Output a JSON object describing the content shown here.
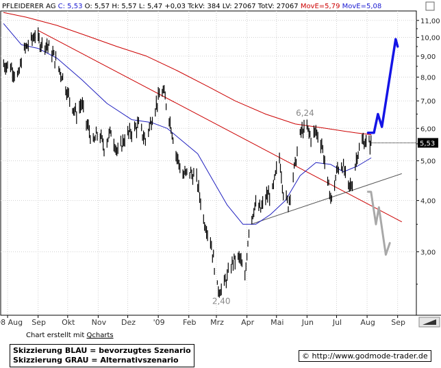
{
  "header": {
    "name": "PFLEIDERER AG",
    "close_label": "C: 5,53",
    "rest": "O: 5,57 H: 5,57 L: 5,47 +0,03 TckV: 384 LV: 27067 TotV: 27067",
    "ma1_label": "MovE=5,79",
    "ma2_label": "MovE=5,08"
  },
  "chart_data": {
    "type": "candlestick",
    "title": "PFLEIDERER AG",
    "y_scale": "log",
    "ylim": [
      2.1,
      11.6
    ],
    "x_ticks": [
      "'08 Aug",
      "Sep",
      "Okt",
      "Nov",
      "Dez",
      "'09",
      "Feb",
      "Mrz",
      "Apr",
      "Mai",
      "Jun",
      "Jul",
      "Aug",
      "Sep"
    ],
    "y_ticks": [
      "11,00",
      "10,00",
      "9,00",
      "8,00",
      "7,00",
      "6,00",
      "5,00",
      "4,00",
      "3,00"
    ],
    "current_price_label": "5,53",
    "annotations": [
      {
        "text": "6,24",
        "date": "2009-05-30",
        "value": 6.24
      },
      {
        "text": "2,40",
        "date": "2009-03-06",
        "value": 2.4
      }
    ],
    "price_path": [
      [
        "2008-07-28",
        8.6
      ],
      [
        "2008-08-04",
        8.5
      ],
      [
        "2008-08-08",
        8.2
      ],
      [
        "2008-08-12",
        8.0
      ],
      [
        "2008-08-15",
        8.8
      ],
      [
        "2008-08-19",
        9.4
      ],
      [
        "2008-08-25",
        9.8
      ],
      [
        "2008-08-29",
        10.2
      ],
      [
        "2008-09-03",
        9.7
      ],
      [
        "2008-09-10",
        9.6
      ],
      [
        "2008-09-16",
        9.1
      ],
      [
        "2008-09-22",
        8.4
      ],
      [
        "2008-09-26",
        8.0
      ],
      [
        "2008-10-01",
        7.3
      ],
      [
        "2008-10-06",
        6.8
      ],
      [
        "2008-10-10",
        6.5
      ],
      [
        "2008-10-15",
        6.9
      ],
      [
        "2008-10-20",
        6.2
      ],
      [
        "2008-10-27",
        5.5
      ],
      [
        "2008-11-01",
        5.9
      ],
      [
        "2008-11-07",
        5.4
      ],
      [
        "2008-11-14",
        5.9
      ],
      [
        "2008-11-21",
        5.2
      ],
      [
        "2008-11-28",
        5.7
      ],
      [
        "2008-12-05",
        5.9
      ],
      [
        "2008-12-12",
        6.1
      ],
      [
        "2008-12-19",
        5.6
      ],
      [
        "2008-12-26",
        6.4
      ],
      [
        "2009-01-02",
        7.2
      ],
      [
        "2009-01-06",
        7.4
      ],
      [
        "2009-01-12",
        6.4
      ],
      [
        "2009-01-19",
        5.2
      ],
      [
        "2009-01-26",
        4.6
      ],
      [
        "2009-02-02",
        4.7
      ],
      [
        "2009-02-09",
        4.5
      ],
      [
        "2009-02-16",
        3.6
      ],
      [
        "2009-02-23",
        3.2
      ],
      [
        "2009-03-02",
        2.45
      ],
      [
        "2009-03-06",
        2.42
      ],
      [
        "2009-03-12",
        2.6
      ],
      [
        "2009-03-18",
        2.85
      ],
      [
        "2009-03-25",
        2.9
      ],
      [
        "2009-03-30",
        2.55
      ],
      [
        "2009-04-03",
        3.4
      ],
      [
        "2009-04-09",
        3.9
      ],
      [
        "2009-04-15",
        3.8
      ],
      [
        "2009-04-21",
        4.1
      ],
      [
        "2009-04-27",
        4.2
      ],
      [
        "2009-05-04",
        5.1
      ],
      [
        "2009-05-08",
        4.2
      ],
      [
        "2009-05-13",
        3.9
      ],
      [
        "2009-05-20",
        4.9
      ],
      [
        "2009-05-26",
        5.9
      ],
      [
        "2009-06-01",
        6.0
      ],
      [
        "2009-06-05",
        5.7
      ],
      [
        "2009-06-10",
        5.9
      ],
      [
        "2009-06-16",
        5.5
      ],
      [
        "2009-06-22",
        4.4
      ],
      [
        "2009-06-26",
        4.0
      ],
      [
        "2009-07-02",
        4.8
      ],
      [
        "2009-07-07",
        4.9
      ],
      [
        "2009-07-13",
        4.3
      ],
      [
        "2009-07-17",
        4.4
      ],
      [
        "2009-07-22",
        5.2
      ],
      [
        "2009-07-28",
        5.6
      ],
      [
        "2009-08-03",
        5.5
      ],
      [
        "2009-08-05",
        5.53
      ]
    ],
    "series": [
      {
        "name": "MovE=5,79",
        "color": "#cc0000",
        "points": [
          [
            "2008-07-28",
            11.5
          ],
          [
            "2008-08-20",
            11.2
          ],
          [
            "2008-09-20",
            10.7
          ],
          [
            "2008-10-20",
            10.1
          ],
          [
            "2008-11-20",
            9.5
          ],
          [
            "2008-12-20",
            9.0
          ],
          [
            "2009-01-20",
            8.3
          ],
          [
            "2009-02-20",
            7.6
          ],
          [
            "2009-03-20",
            7.0
          ],
          [
            "2009-04-20",
            6.5
          ],
          [
            "2009-05-20",
            6.15
          ],
          [
            "2009-06-20",
            6.0
          ],
          [
            "2009-07-20",
            5.85
          ],
          [
            "2009-08-05",
            5.79
          ]
        ]
      },
      {
        "name": "MovE=5,08",
        "color": "#1f1fbf",
        "points": [
          [
            "2008-07-28",
            10.8
          ],
          [
            "2008-08-15",
            9.6
          ],
          [
            "2008-09-01",
            9.4
          ],
          [
            "2008-09-20",
            8.9
          ],
          [
            "2008-10-15",
            7.9
          ],
          [
            "2008-11-10",
            6.9
          ],
          [
            "2008-12-05",
            6.3
          ],
          [
            "2008-12-25",
            6.2
          ],
          [
            "2009-01-10",
            6.0
          ],
          [
            "2009-01-25",
            5.6
          ],
          [
            "2009-02-10",
            5.2
          ],
          [
            "2009-02-25",
            4.5
          ],
          [
            "2009-03-12",
            3.9
          ],
          [
            "2009-03-28",
            3.5
          ],
          [
            "2009-04-10",
            3.5
          ],
          [
            "2009-04-25",
            3.7
          ],
          [
            "2009-05-10",
            4.0
          ],
          [
            "2009-05-25",
            4.6
          ],
          [
            "2009-06-10",
            4.95
          ],
          [
            "2009-06-25",
            4.9
          ],
          [
            "2009-07-08",
            4.7
          ],
          [
            "2009-07-22",
            4.85
          ],
          [
            "2009-08-05",
            5.08
          ]
        ]
      }
    ],
    "trendlines": [
      {
        "name": "resistance",
        "color": "#cc0000",
        "points": [
          [
            "2008-09-01",
            10.4
          ],
          [
            "2009-09-05",
            3.55
          ]
        ]
      },
      {
        "name": "support",
        "color": "#555555",
        "points": [
          [
            "2009-04-05",
            3.5
          ],
          [
            "2009-09-05",
            4.65
          ]
        ]
      }
    ],
    "scenarios": [
      {
        "name": "blau",
        "color": "#1414e6",
        "points": [
          [
            "2009-08-02",
            5.85
          ],
          [
            "2009-08-08",
            5.85
          ],
          [
            "2009-08-12",
            6.5
          ],
          [
            "2009-08-16",
            6.05
          ],
          [
            "2009-08-30",
            9.9
          ],
          [
            "2009-09-01",
            9.5
          ]
        ]
      },
      {
        "name": "grau",
        "color": "#a8a8a8",
        "points": [
          [
            "2009-08-02",
            4.2
          ],
          [
            "2009-08-05",
            4.2
          ],
          [
            "2009-08-10",
            3.5
          ],
          [
            "2009-08-13",
            3.85
          ],
          [
            "2009-08-20",
            2.95
          ],
          [
            "2009-08-24",
            3.15
          ]
        ]
      }
    ]
  },
  "footer": {
    "credit_prefix": "Chart erstellt mit",
    "credit_link": "Qcharts",
    "legend_blue": "Skizzierung BLAU = bevorzugtes Szenario",
    "legend_grey": "Skizzierung GRAU = Alternativszenario",
    "url": "http://www.godmode-trader.de",
    "copyright_symbol": "©"
  }
}
